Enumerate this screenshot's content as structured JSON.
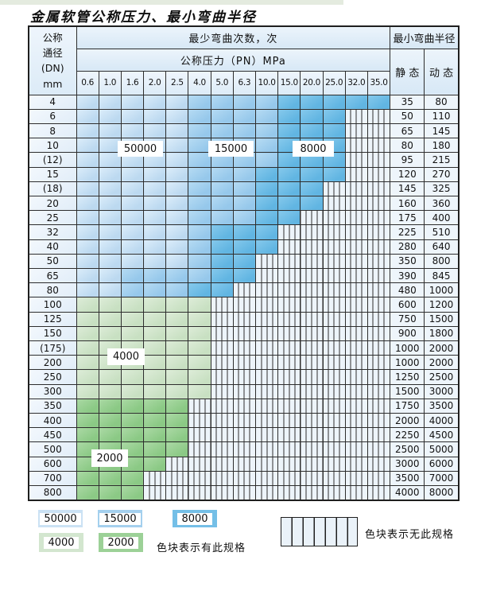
{
  "page_title": "金属软管公称压力、最小弯曲半径",
  "table": {
    "corner_header": "公称\n通径\n(DN)\nmm",
    "bend_cycles_header": "最少弯曲次数，次",
    "pressure_header": "公称压力（PN）MPa",
    "radius_header": "最小弯曲半径",
    "static_header": "静 态",
    "dynamic_header": "动 态",
    "pressures": [
      "0.6",
      "1.0",
      "1.6",
      "2.0",
      "2.5",
      "4.0",
      "5.0",
      "6.3",
      "10.0",
      "15.0",
      "20.0",
      "25.0",
      "32.0",
      "35.0"
    ],
    "zone_codes": {
      "a": "50000",
      "b": "15000",
      "c": "8000",
      "d": "4000",
      "e": "2000",
      "x": "no-spec"
    },
    "rows": [
      {
        "dn": "4",
        "zones": "aaaaabbbbccccc",
        "static": "35",
        "dynamic": "80"
      },
      {
        "dn": "6",
        "zones": "aaaaabbbbcccxx",
        "static": "50",
        "dynamic": "110"
      },
      {
        "dn": "8",
        "zones": "aaaaabbbbcccxx",
        "static": "65",
        "dynamic": "145"
      },
      {
        "dn": "10",
        "zones": "aaaaabbbbcccxx",
        "static": "80",
        "dynamic": "180"
      },
      {
        "dn": "(12)",
        "zones": "aaaaabbbbcccxx",
        "static": "95",
        "dynamic": "215"
      },
      {
        "dn": "15",
        "zones": "aaaaabbbccccxx",
        "static": "120",
        "dynamic": "270"
      },
      {
        "dn": "(18)",
        "zones": "aaaaabbbcccxxx",
        "static": "145",
        "dynamic": "325"
      },
      {
        "dn": "20",
        "zones": "aaaaabbbcccxxx",
        "static": "160",
        "dynamic": "360"
      },
      {
        "dn": "25",
        "zones": "aaaaabbbccxxxx",
        "static": "175",
        "dynamic": "400"
      },
      {
        "dn": "32",
        "zones": "aaaaabcccxxxxx",
        "static": "225",
        "dynamic": "510"
      },
      {
        "dn": "40",
        "zones": "aaaaabcccxxxxx",
        "static": "280",
        "dynamic": "640"
      },
      {
        "dn": "50",
        "zones": "aaaaabccxxxxxx",
        "static": "350",
        "dynamic": "800"
      },
      {
        "dn": "65",
        "zones": "aabbbbccxxxxxx",
        "static": "390",
        "dynamic": "845"
      },
      {
        "dn": "80",
        "zones": "aabbbccxxxxxxx",
        "static": "480",
        "dynamic": "1000"
      },
      {
        "dn": "100",
        "zones": "ddddddxxxxxxxx",
        "static": "600",
        "dynamic": "1200"
      },
      {
        "dn": "125",
        "zones": "ddddddxxxxxxxx",
        "static": "750",
        "dynamic": "1500"
      },
      {
        "dn": "150",
        "zones": "ddddddxxxxxxxx",
        "static": "900",
        "dynamic": "1800"
      },
      {
        "dn": "(175)",
        "zones": "ddddddxxxxxxxx",
        "static": "1000",
        "dynamic": "2000"
      },
      {
        "dn": "200",
        "zones": "ddddddxxxxxxxx",
        "static": "1000",
        "dynamic": "2000"
      },
      {
        "dn": "250",
        "zones": "ddddddxxxxxxxx",
        "static": "1250",
        "dynamic": "2500"
      },
      {
        "dn": "300",
        "zones": "ddddddxxxxxxxx",
        "static": "1500",
        "dynamic": "3000"
      },
      {
        "dn": "350",
        "zones": "eeeeexxxxxxxxx",
        "static": "1750",
        "dynamic": "3500"
      },
      {
        "dn": "400",
        "zones": "eeeeexxxxxxxxx",
        "static": "2000",
        "dynamic": "4000"
      },
      {
        "dn": "450",
        "zones": "eeeeexxxxxxxxx",
        "static": "2250",
        "dynamic": "4500"
      },
      {
        "dn": "500",
        "zones": "eeeeexxxxxxxxx",
        "static": "2500",
        "dynamic": "5000"
      },
      {
        "dn": "600",
        "zones": "eeeexxxxxxxxxx",
        "static": "3000",
        "dynamic": "6000"
      },
      {
        "dn": "700",
        "zones": "eeexxxxxxxxxxx",
        "static": "3500",
        "dynamic": "7000"
      },
      {
        "dn": "800",
        "zones": "eeexxxxxxxxxxx",
        "static": "4000",
        "dynamic": "8000"
      }
    ]
  },
  "in_table_labels": [
    {
      "text": "50000"
    },
    {
      "text": "15000"
    },
    {
      "text": "8000"
    },
    {
      "text": "4000"
    },
    {
      "text": "2000"
    }
  ],
  "legend": {
    "items": [
      {
        "label": "50000"
      },
      {
        "label": "15000"
      },
      {
        "label": "8000"
      },
      {
        "label": "4000"
      },
      {
        "label": "2000"
      }
    ],
    "has_spec_note": "色块表示有此规格",
    "no_spec_note": "色块表示无此规格"
  },
  "colors": {
    "cycles_50000": "#cbe2f4",
    "cycles_15000": "#a4d0ee",
    "cycles_8000": "#74bfe7",
    "cycles_4000": "#d3e6cf",
    "cycles_2000": "#9cd197",
    "no_spec_background": "#edf4fa",
    "header_background": "#dcebf7",
    "border": "#2d2d2d",
    "top_strip": "#e4ebdf"
  }
}
